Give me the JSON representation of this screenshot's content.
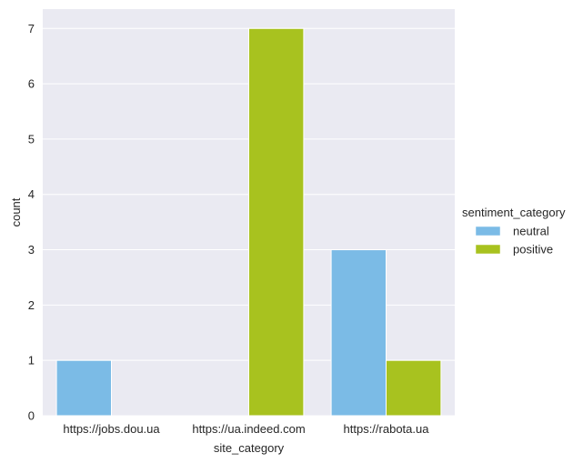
{
  "chart_data": {
    "type": "bar",
    "xlabel": "site_category",
    "ylabel": "count",
    "categories": [
      "https://jobs.dou.ua",
      "https://ua.indeed.com",
      "https://rabota.ua"
    ],
    "series": [
      {
        "name": "neutral",
        "values": [
          1,
          0,
          3
        ],
        "color": "#7bbbe6"
      },
      {
        "name": "positive",
        "values": [
          0,
          7,
          1
        ],
        "color": "#a8c21f"
      }
    ],
    "ylim": [
      0,
      7.35
    ],
    "yticks": [
      0,
      1,
      2,
      3,
      4,
      5,
      6,
      7
    ],
    "grid": true,
    "legend": {
      "title": "sentiment_category",
      "placement": "right"
    },
    "background_color": "#eaeaf2"
  }
}
